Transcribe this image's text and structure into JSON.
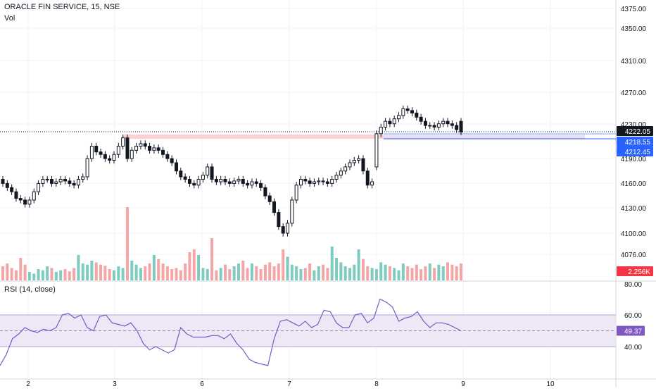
{
  "header": {
    "symbol_title": "ORACLE FIN SERVICE, 15, NSE",
    "volume_label": "Vol"
  },
  "rsi_panel": {
    "title": "RSI (14, close)"
  },
  "price_axis": {
    "ticks": [
      "4375.00",
      "4350.00",
      "4310.00",
      "4270.00",
      "4230.00",
      "4190.00",
      "4160.00",
      "4130.00",
      "4100.00",
      "4076.00"
    ]
  },
  "price_labels": {
    "last": {
      "text": "4222.05",
      "color": "#131722"
    },
    "level1": {
      "text": "4218.55",
      "color": "#2962ff"
    },
    "level2": {
      "text": "4212.45",
      "color": "#2962ff"
    },
    "volume": {
      "text": "2.256K",
      "color": "#f23645"
    }
  },
  "rsi_axis": {
    "ticks": [
      "80.00",
      "60.00",
      "40.00"
    ],
    "current": {
      "text": "49.37",
      "color": "#7e57c2"
    }
  },
  "time_axis": {
    "ticks": [
      "2",
      "3",
      "6",
      "7",
      "8",
      "9",
      "10"
    ]
  },
  "colors": {
    "up": "#089981",
    "down": "#131722",
    "vol_up": "#7fcbbf",
    "vol_down": "#f4a6a6",
    "rsi_line": "#7e57c2",
    "rsi_band": "#ede7f6",
    "zone": "#fbd1d1",
    "level_line": "#2962ff"
  },
  "chart_data": {
    "type": "candlestick",
    "price_axis_ticks": [
      4375,
      4350,
      4310,
      4270,
      4230,
      4190,
      4160,
      4130,
      4100,
      4076
    ],
    "rsi_axis_ticks": [
      80,
      60,
      40
    ],
    "x_ticks": [
      "2",
      "3",
      "6",
      "7",
      "8",
      "9",
      "10"
    ],
    "last_price": 4222.05,
    "levels": [
      4218.55,
      4212.45
    ],
    "volume_last": "2.256K",
    "rsi_last": 49.37,
    "series": [
      {
        "name": "price",
        "close": [
          4160,
          4155,
          4150,
          4142,
          4140,
          4135,
          4140,
          4150,
          4160,
          4165,
          4165,
          4160,
          4162,
          4165,
          4163,
          4160,
          4158,
          4165,
          4168,
          4190,
          4205,
          4198,
          4195,
          4190,
          4188,
          4195,
          4205,
          4215,
          4190,
          4200,
          4205,
          4208,
          4205,
          4200,
          4203,
          4200,
          4195,
          4190,
          4185,
          4175,
          4168,
          4165,
          4160,
          4158,
          4165,
          4170,
          4180,
          4165,
          4162,
          4165,
          4162,
          4160,
          4163,
          4165,
          4160,
          4158,
          4162,
          4160,
          4155,
          4145,
          4138,
          4125,
          4108,
          4100,
          4112,
          4140,
          4158,
          4165,
          4163,
          4160,
          4162,
          4163,
          4162,
          4160,
          4165,
          4170,
          4175,
          4180,
          4185,
          4188,
          4190,
          4175,
          4158,
          4162,
          4220,
          4228,
          4235,
          4232,
          4238,
          4242,
          4250,
          4248,
          4245,
          4240,
          4235,
          4230,
          4230,
          4228,
          4232,
          4235,
          4232,
          4230,
          4225,
          4222
        ],
        "open": [
          4165,
          4160,
          4155,
          4150,
          4142,
          4140,
          4135,
          4140,
          4150,
          4160,
          4165,
          4165,
          4160,
          4162,
          4165,
          4163,
          4160,
          4158,
          4165,
          4168,
          4190,
          4205,
          4198,
          4195,
          4190,
          4188,
          4195,
          4205,
          4215,
          4190,
          4200,
          4205,
          4208,
          4205,
          4200,
          4203,
          4200,
          4195,
          4190,
          4185,
          4175,
          4168,
          4165,
          4160,
          4158,
          4165,
          4170,
          4180,
          4165,
          4162,
          4165,
          4162,
          4160,
          4163,
          4165,
          4160,
          4158,
          4162,
          4160,
          4155,
          4145,
          4138,
          4125,
          4108,
          4100,
          4112,
          4140,
          4158,
          4165,
          4163,
          4160,
          4162,
          4163,
          4162,
          4160,
          4165,
          4170,
          4175,
          4180,
          4185,
          4188,
          4190,
          4175,
          4158,
          4180,
          4220,
          4228,
          4235,
          4232,
          4238,
          4242,
          4250,
          4248,
          4245,
          4240,
          4235,
          4230,
          4230,
          4228,
          4232,
          4235,
          4232,
          4230,
          4235
        ]
      },
      {
        "name": "rsi",
        "values": [
          28,
          35,
          45,
          48,
          52,
          50,
          49,
          51,
          50,
          52,
          60,
          61,
          58,
          60,
          52,
          50,
          59,
          60,
          55,
          54,
          53,
          55,
          50,
          42,
          38,
          40,
          38,
          36,
          38,
          52,
          48,
          46,
          46,
          46,
          47,
          47,
          45,
          48,
          42,
          38,
          32,
          30,
          29,
          28,
          45,
          56,
          57,
          55,
          53,
          56,
          52,
          54,
          63,
          62,
          55,
          52,
          52,
          60,
          61,
          55,
          58,
          70,
          68,
          65,
          56,
          58,
          59,
          62,
          56,
          52,
          55,
          55,
          54,
          52,
          50
        ]
      },
      {
        "name": "volume",
        "values": [
          25,
          30,
          22,
          18,
          40,
          28,
          15,
          12,
          20,
          18,
          25,
          22,
          15,
          18,
          20,
          16,
          22,
          45,
          30,
          28,
          35,
          32,
          28,
          26,
          20,
          18,
          25,
          22,
          130,
          35,
          28,
          22,
          25,
          30,
          45,
          38,
          30,
          25,
          20,
          22,
          18,
          30,
          50,
          55,
          45,
          22,
          20,
          75,
          18,
          22,
          28,
          20,
          25,
          30,
          35,
          22,
          30,
          25,
          20,
          28,
          32,
          25,
          30,
          55,
          42,
          28,
          25,
          20,
          22,
          30,
          18,
          25,
          28,
          22,
          60,
          40,
          32,
          25,
          22,
          28,
          55,
          38,
          25,
          22,
          20,
          32,
          28,
          25,
          22,
          18,
          30,
          25,
          22,
          28,
          20,
          25,
          30,
          22,
          28,
          25,
          32,
          28,
          25,
          30
        ]
      }
    ]
  }
}
